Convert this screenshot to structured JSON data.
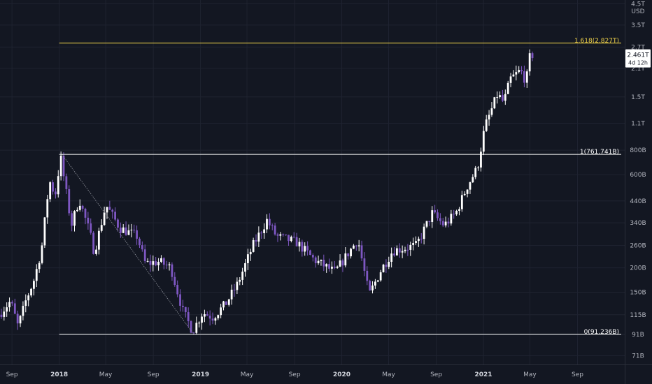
{
  "chart_data": {
    "type": "candlestick",
    "scale": "log",
    "currency": "USD",
    "ylim": [
      64,
      4700
    ],
    "xlim": [
      "2017-08-01",
      "2022-01-01"
    ],
    "grid": true,
    "y_ticks": [
      {
        "label": "4.5T",
        "value": 4500
      },
      {
        "label": "3.5T",
        "value": 3500
      },
      {
        "label": "2.7T",
        "value": 2700
      },
      {
        "label": "2.1T",
        "value": 2100
      },
      {
        "label": "1.5T",
        "value": 1500
      },
      {
        "label": "1.1T",
        "value": 1100
      },
      {
        "label": "800B",
        "value": 800
      },
      {
        "label": "600B",
        "value": 600
      },
      {
        "label": "440B",
        "value": 440
      },
      {
        "label": "340B",
        "value": 340
      },
      {
        "label": "260B",
        "value": 260
      },
      {
        "label": "200B",
        "value": 200
      },
      {
        "label": "150B",
        "value": 150
      },
      {
        "label": "115B",
        "value": 115
      },
      {
        "label": "91B",
        "value": 91
      },
      {
        "label": "71B",
        "value": 71
      }
    ],
    "x_ticks": [
      {
        "label": "Sep",
        "date": "2017-09-01",
        "bold": false
      },
      {
        "label": "2018",
        "date": "2018-01-01",
        "bold": true
      },
      {
        "label": "May",
        "date": "2018-05-01",
        "bold": false
      },
      {
        "label": "Sep",
        "date": "2018-09-01",
        "bold": false
      },
      {
        "label": "2019",
        "date": "2019-01-01",
        "bold": true
      },
      {
        "label": "May",
        "date": "2019-05-01",
        "bold": false
      },
      {
        "label": "Sep",
        "date": "2019-09-01",
        "bold": false
      },
      {
        "label": "2020",
        "date": "2020-01-01",
        "bold": true
      },
      {
        "label": "May",
        "date": "2020-05-01",
        "bold": false
      },
      {
        "label": "Sep",
        "date": "2020-09-01",
        "bold": false
      },
      {
        "label": "2021",
        "date": "2021-01-01",
        "bold": true
      },
      {
        "label": "May",
        "date": "2021-05-01",
        "bold": false
      },
      {
        "label": "Sep",
        "date": "2021-09-01",
        "bold": false
      }
    ],
    "fib_levels": [
      {
        "label": "1.618(2.827T)",
        "value": 2827,
        "start": "2018-01-01",
        "color": "#f0d24a"
      },
      {
        "label": "1(761.741B)",
        "value": 761.741,
        "start": "2018-01-01",
        "color": "#ffffff"
      },
      {
        "label": "0(91.236B)",
        "value": 91.236,
        "start": "2018-01-01",
        "color": "#ffffff"
      }
    ],
    "trend_line": {
      "from": {
        "date": "2018-01-08",
        "value": 762
      },
      "to": {
        "date": "2018-12-15",
        "value": 91
      }
    },
    "price_label": {
      "value_text": "2.461T",
      "value": 2461,
      "countdown": "4d 12h"
    },
    "up_color": "#ffffff",
    "down_color": "#7e57c2",
    "path": [
      [
        "2017-08-01",
        115
      ],
      [
        "2017-09-01",
        135
      ],
      [
        "2017-09-20",
        100
      ],
      [
        "2017-10-10",
        135
      ],
      [
        "2017-11-01",
        175
      ],
      [
        "2017-11-20",
        250
      ],
      [
        "2017-12-10",
        560
      ],
      [
        "2017-12-25",
        470
      ],
      [
        "2018-01-08",
        740
      ],
      [
        "2018-02-05",
        330
      ],
      [
        "2018-02-25",
        450
      ],
      [
        "2018-03-25",
        300
      ],
      [
        "2018-04-05",
        240
      ],
      [
        "2018-05-05",
        420
      ],
      [
        "2018-06-10",
        320
      ],
      [
        "2018-07-25",
        290
      ],
      [
        "2018-08-15",
        210
      ],
      [
        "2018-09-20",
        215
      ],
      [
        "2018-10-20",
        200
      ],
      [
        "2018-11-20",
        120
      ],
      [
        "2018-12-15",
        95
      ],
      [
        "2019-01-10",
        118
      ],
      [
        "2019-02-05",
        112
      ],
      [
        "2019-03-10",
        130
      ],
      [
        "2019-04-10",
        165
      ],
      [
        "2019-05-20",
        260
      ],
      [
        "2019-06-25",
        350
      ],
      [
        "2019-07-20",
        290
      ],
      [
        "2019-09-10",
        270
      ],
      [
        "2019-10-25",
        220
      ],
      [
        "2019-12-18",
        190
      ],
      [
        "2020-02-15",
        280
      ],
      [
        "2020-03-15",
        145
      ],
      [
        "2020-04-15",
        195
      ],
      [
        "2020-05-15",
        245
      ],
      [
        "2020-07-15",
        260
      ],
      [
        "2020-08-25",
        380
      ],
      [
        "2020-09-25",
        330
      ],
      [
        "2020-10-25",
        380
      ],
      [
        "2020-11-25",
        530
      ],
      [
        "2020-12-20",
        650
      ],
      [
        "2021-01-08",
        1050
      ],
      [
        "2021-02-10",
        1550
      ],
      [
        "2021-02-26",
        1400
      ],
      [
        "2021-03-15",
        1850
      ],
      [
        "2021-04-10",
        2050
      ],
      [
        "2021-04-25",
        1800
      ],
      [
        "2021-05-05",
        2461
      ]
    ]
  }
}
